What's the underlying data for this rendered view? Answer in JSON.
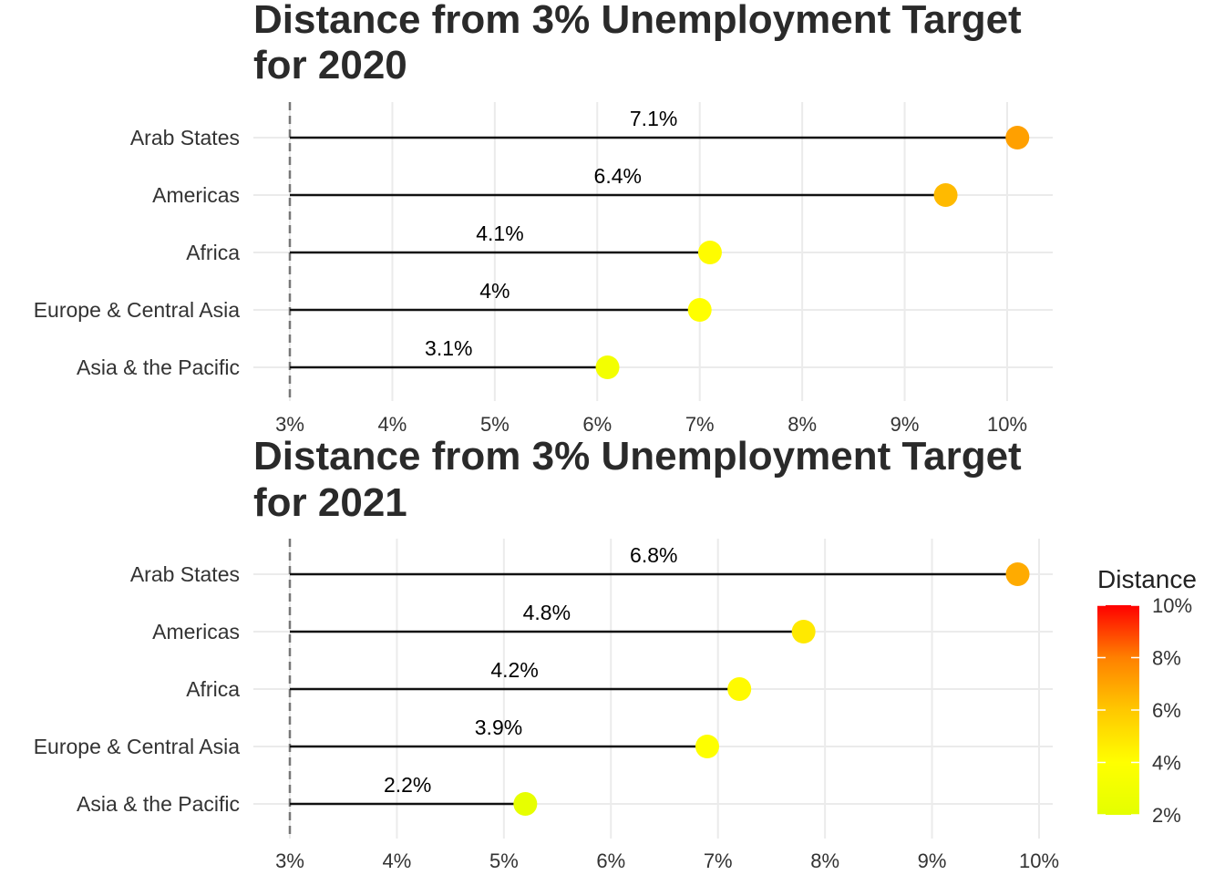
{
  "chart_data": [
    {
      "type": "lollipop",
      "title": "Distance from 3% Unemployment Target for 2020",
      "title_lines": [
        "Distance from 3% Unemployment Target",
        "for 2020"
      ],
      "categories": [
        "Arab States",
        "Americas",
        "Africa",
        "Europe & Central Asia",
        "Asia & the Pacific"
      ],
      "x_start": 3,
      "values": [
        10.1,
        9.4,
        7.1,
        7.0,
        6.1
      ],
      "distance": [
        7.1,
        6.4,
        4.1,
        4.0,
        3.1
      ],
      "labels": [
        "7.1%",
        "6.4%",
        "4.1%",
        "4%",
        "3.1%"
      ],
      "xlim": [
        3,
        10
      ],
      "xticks": [
        3,
        4,
        5,
        6,
        7,
        8,
        9,
        10
      ],
      "xtick_labels": [
        "3%",
        "4%",
        "5%",
        "6%",
        "7%",
        "8%",
        "9%",
        "10%"
      ],
      "reference_line": 3,
      "grid": true
    },
    {
      "type": "lollipop",
      "title": "Distance from 3% Unemployment Target for 2021",
      "title_lines": [
        "Distance from 3% Unemployment Target",
        "for 2021"
      ],
      "categories": [
        "Arab States",
        "Americas",
        "Africa",
        "Europe & Central Asia",
        "Asia & the Pacific"
      ],
      "x_start": 3,
      "values": [
        9.8,
        7.8,
        7.2,
        6.9,
        5.2
      ],
      "distance": [
        6.8,
        4.8,
        4.2,
        3.9,
        2.2
      ],
      "labels": [
        "6.8%",
        "4.8%",
        "4.2%",
        "3.9%",
        "2.2%"
      ],
      "xlim": [
        3,
        10
      ],
      "xticks": [
        3,
        4,
        5,
        6,
        7,
        8,
        9,
        10
      ],
      "xtick_labels": [
        "3%",
        "4%",
        "5%",
        "6%",
        "7%",
        "8%",
        "9%",
        "10%"
      ],
      "reference_line": 3,
      "grid": true
    }
  ],
  "legend": {
    "title": "Distance",
    "range": [
      2,
      10
    ],
    "ticks": [
      10,
      8,
      6,
      4,
      2
    ],
    "tick_labels": [
      "10%",
      "8%",
      "6%",
      "4%",
      "2%"
    ],
    "colors": [
      "#ffff00",
      "#ffa500",
      "#ff0000"
    ],
    "placement": "right"
  }
}
